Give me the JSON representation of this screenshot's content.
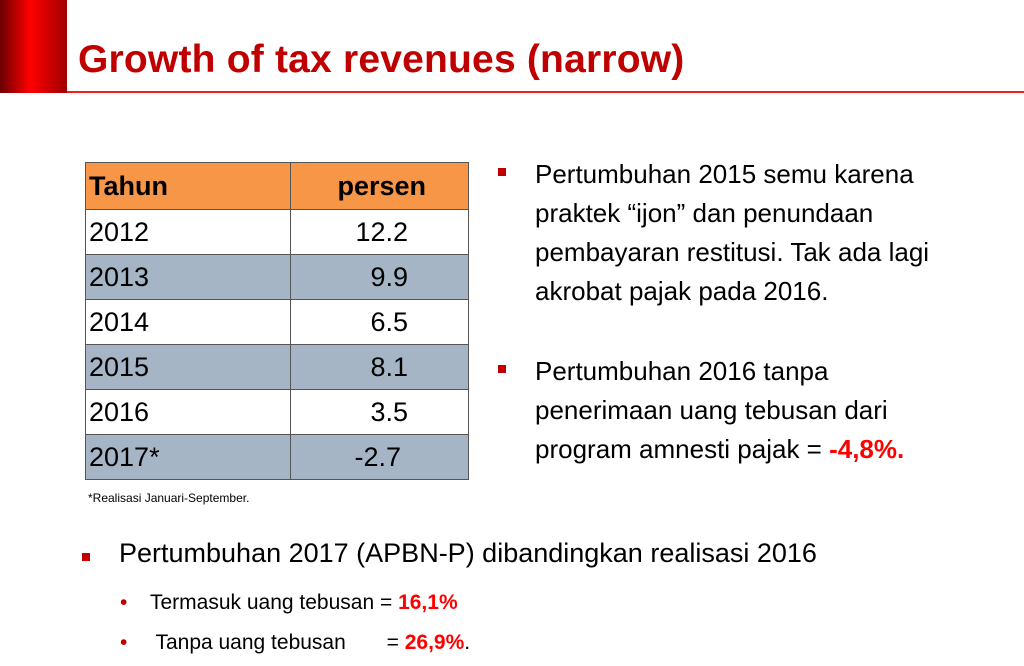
{
  "title": "Growth of tax revenues (narrow)",
  "table": {
    "headers": [
      "Tahun",
      "persen"
    ],
    "rows": [
      {
        "year": "2012",
        "value": "12.2"
      },
      {
        "year": "2013",
        "value": "9.9"
      },
      {
        "year": "2014",
        "value": "6.5"
      },
      {
        "year": "2015",
        "value": "8.1"
      },
      {
        "year": "2016",
        "value": "3.5"
      },
      {
        "year": "2017*",
        "value": "-2.7"
      }
    ],
    "footnote": "*Realisasi Januari-September."
  },
  "bullets": [
    {
      "text": "Pertumbuhan 2015 semu karena praktek “ijon” dan penundaan pembayaran restitusi. Tak ada lagi akrobat pajak pada 2016."
    },
    {
      "text": "Pertumbuhan 2016 tanpa penerimaan uang tebusan dari program amnesti pajak = ",
      "highlight": "-4,8%."
    }
  ],
  "bottom": {
    "text": "Pertumbuhan 2017 (APBN-P) dibandingkan realisasi 2016",
    "subs": [
      {
        "label": "Termasuk uang tebusan = ",
        "value": "16,1%",
        "suffix": ""
      },
      {
        "label": " Tanpa uang tebusan       = ",
        "value": "26,9%",
        "suffix": "."
      }
    ]
  },
  "colors": {
    "title": "#c00000",
    "header": "#f79646",
    "alt_row": "#a6b5c6",
    "highlight": "#ff0000"
  }
}
